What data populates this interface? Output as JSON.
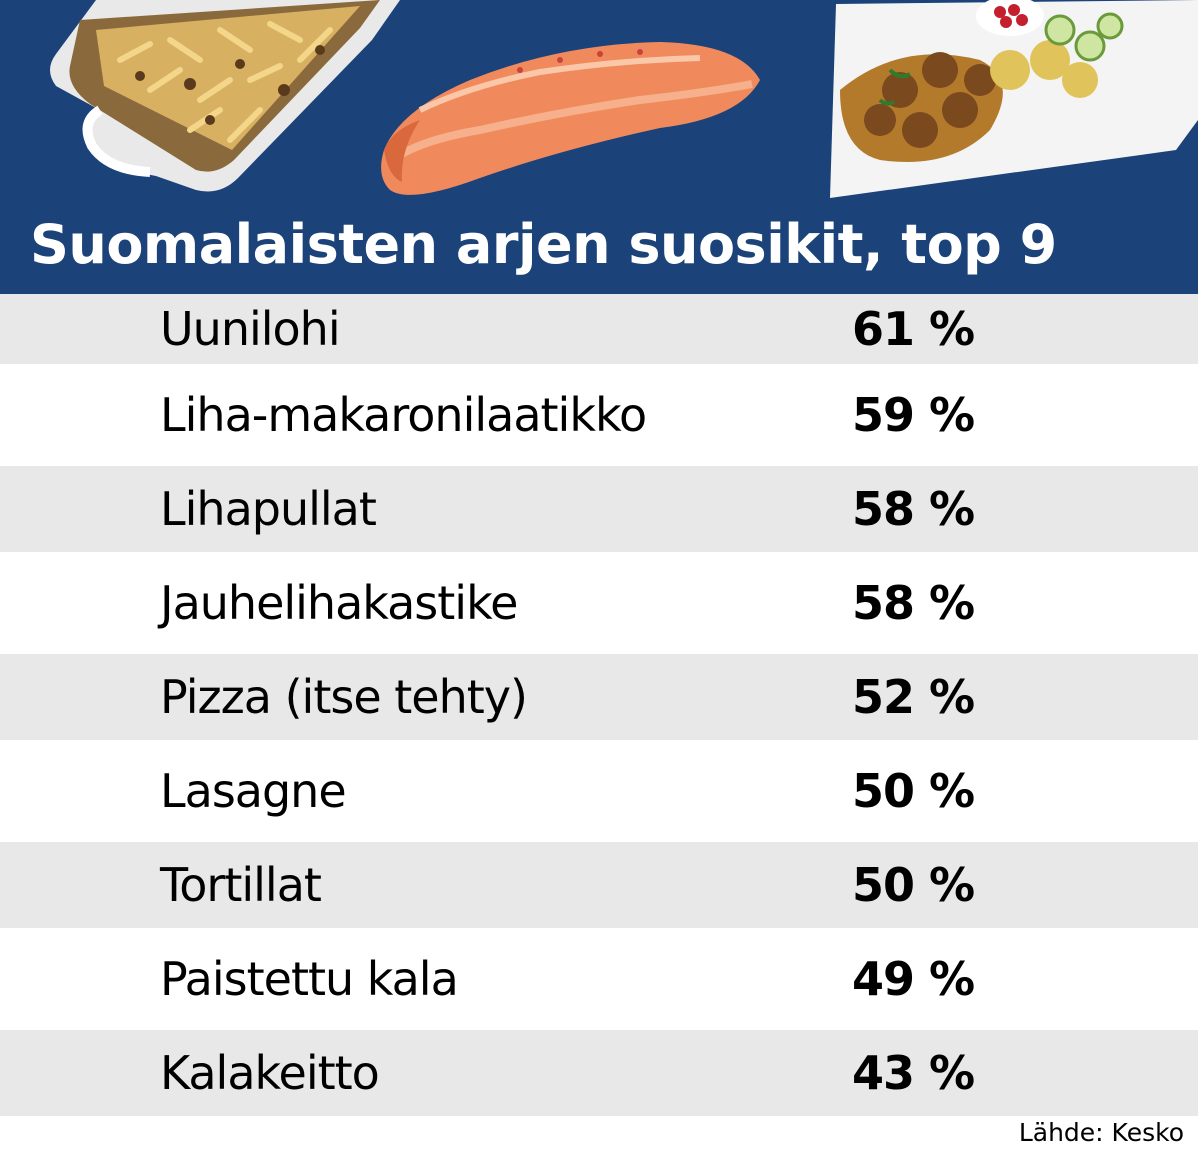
{
  "chart_data": {
    "type": "table",
    "title": "Suomalaisten arjen suosikit, top 9",
    "categories": [
      "Uunilohi",
      "Liha-makaronilaatikko",
      "Lihapullat",
      "Jauhelihakastike",
      "Pizza (itse tehty)",
      "Lasagne",
      "Tortillat",
      "Paistettu kala",
      "Kalakeitto"
    ],
    "values": [
      61,
      59,
      58,
      58,
      52,
      50,
      50,
      49,
      43
    ],
    "value_labels": [
      "61 %",
      "59 %",
      "58 %",
      "58 %",
      "52 %",
      "50 %",
      "50 %",
      "49 %",
      "43 %"
    ],
    "source": "Lähde: Kesko"
  },
  "colors": {
    "header_background": "#1b4279",
    "title_text": "#ffffff",
    "row_shade": "#e8e8e8",
    "row_plain": "#ffffff"
  },
  "icons": [
    "macaroni-casserole-image",
    "salmon-fillet-image",
    "meatballs-plate-image"
  ]
}
